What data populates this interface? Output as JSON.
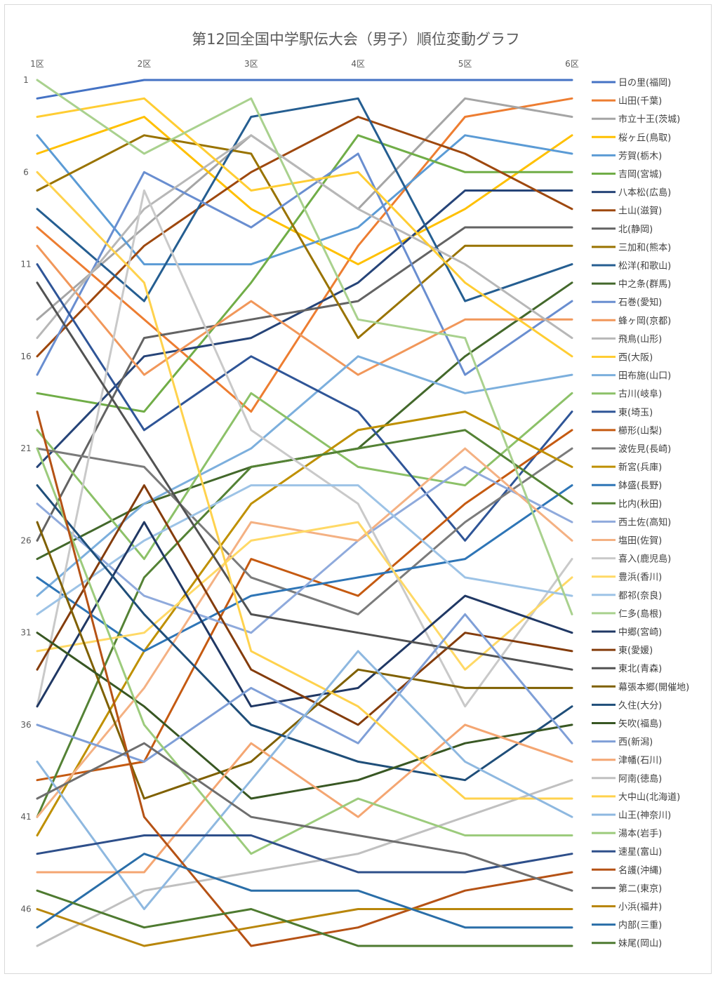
{
  "chart_data": {
    "type": "line",
    "title": "第12回全国中学駅伝大会（男子）順位変動グラフ",
    "xlabel": "",
    "ylabel": "",
    "categories": [
      "1区",
      "2区",
      "3区",
      "4区",
      "5区",
      "6区"
    ],
    "y_ticks": [
      1,
      6,
      11,
      16,
      21,
      26,
      31,
      36,
      41,
      46
    ],
    "ylim": [
      1,
      48
    ],
    "y_inverted": true,
    "grid": false,
    "legend_position": "right",
    "series": [
      {
        "name": "日の里(福岡)",
        "color": "#4472C4",
        "values": [
          2,
          1,
          1,
          1,
          1,
          1
        ]
      },
      {
        "name": "山田(千葉)",
        "color": "#ED7D31",
        "values": [
          9,
          14,
          19,
          10,
          3,
          2
        ]
      },
      {
        "name": "市立十王(茨城)",
        "color": "#A5A5A5",
        "values": [
          14,
          9,
          4,
          8,
          2,
          3
        ]
      },
      {
        "name": "桜ヶ丘(鳥取)",
        "color": "#FFC000",
        "values": [
          5,
          3,
          8,
          11,
          8,
          4
        ]
      },
      {
        "name": "芳賀(栃木)",
        "color": "#5B9BD5",
        "values": [
          4,
          11,
          11,
          9,
          4,
          5
        ]
      },
      {
        "name": "吉岡(宮城)",
        "color": "#70AD47",
        "values": [
          18,
          19,
          12,
          4,
          6,
          6
        ]
      },
      {
        "name": "八本松(広島)",
        "color": "#264478",
        "values": [
          22,
          16,
          15,
          12,
          7,
          7
        ]
      },
      {
        "name": "土山(滋賀)",
        "color": "#9E480E",
        "values": [
          16,
          10,
          6,
          3,
          5,
          8
        ]
      },
      {
        "name": "北(静岡)",
        "color": "#636363",
        "values": [
          26,
          15,
          14,
          13,
          9,
          9
        ]
      },
      {
        "name": "三加和(熊本)",
        "color": "#997300",
        "values": [
          7,
          4,
          5,
          15,
          10,
          10
        ]
      },
      {
        "name": "松洋(和歌山)",
        "color": "#255E91",
        "values": [
          8,
          13,
          3,
          2,
          13,
          11
        ]
      },
      {
        "name": "中之条(群馬)",
        "color": "#43682B",
        "values": [
          27,
          24,
          22,
          21,
          16,
          12
        ]
      },
      {
        "name": "石巻(愛知)",
        "color": "#698ED0",
        "values": [
          17,
          6,
          9,
          5,
          17,
          13
        ]
      },
      {
        "name": "蜂ヶ岡(京都)",
        "color": "#F1975A",
        "values": [
          10,
          17,
          13,
          17,
          14,
          14
        ]
      },
      {
        "name": "飛鳥(山形)",
        "color": "#B7B7B7",
        "values": [
          15,
          8,
          4,
          8,
          11,
          15
        ]
      },
      {
        "name": "西(大阪)",
        "color": "#FFCD33",
        "values": [
          3,
          2,
          7,
          6,
          12,
          16
        ]
      },
      {
        "name": "田布施(山口)",
        "color": "#7CAFDD",
        "values": [
          29,
          24,
          21,
          16,
          18,
          17
        ]
      },
      {
        "name": "古川(岐阜)",
        "color": "#8CC168",
        "values": [
          20,
          27,
          18,
          22,
          23,
          18
        ]
      },
      {
        "name": "東(埼玉)",
        "color": "#2F5597",
        "values": [
          11,
          20,
          16,
          19,
          26,
          19
        ]
      },
      {
        "name": "櫛形(山梨)",
        "color": "#C55A11",
        "values": [
          39,
          38,
          27,
          29,
          24,
          20
        ]
      },
      {
        "name": "波佐見(長崎)",
        "color": "#7B7B7B",
        "values": [
          21,
          22,
          28,
          30,
          25,
          21
        ]
      },
      {
        "name": "新宮(兵庫)",
        "color": "#BF9000",
        "values": [
          42,
          32,
          24,
          20,
          19,
          22
        ]
      },
      {
        "name": "鉢盛(長野)",
        "color": "#2E75B6",
        "values": [
          28,
          32,
          29,
          28,
          27,
          23
        ]
      },
      {
        "name": "比内(秋田)",
        "color": "#548235",
        "values": [
          41,
          28,
          22,
          21,
          20,
          24
        ]
      },
      {
        "name": "西土佐(高知)",
        "color": "#8FAADC",
        "values": [
          24,
          29,
          31,
          26,
          22,
          25
        ]
      },
      {
        "name": "塩田(佐賀)",
        "color": "#F4B183",
        "values": [
          41,
          34,
          25,
          26,
          21,
          26
        ]
      },
      {
        "name": "喜入(鹿児島)",
        "color": "#C9C9C9",
        "values": [
          35,
          7,
          20,
          24,
          35,
          27
        ]
      },
      {
        "name": "豊浜(香川)",
        "color": "#FFD966",
        "values": [
          32,
          31,
          26,
          25,
          33,
          28
        ]
      },
      {
        "name": "都祁(奈良)",
        "color": "#9DC3E6",
        "values": [
          30,
          26,
          23,
          23,
          28,
          29
        ]
      },
      {
        "name": "仁多(島根)",
        "color": "#A9D18E",
        "values": [
          1,
          5,
          2,
          14,
          15,
          30
        ]
      },
      {
        "name": "中郷(宮崎)",
        "color": "#203864",
        "values": [
          35,
          25,
          35,
          34,
          29,
          31
        ]
      },
      {
        "name": "東(愛媛)",
        "color": "#843C0C",
        "values": [
          33,
          23,
          33,
          36,
          31,
          32
        ]
      },
      {
        "name": "東北(青森)",
        "color": "#525252",
        "values": [
          12,
          21,
          30,
          31,
          32,
          33
        ]
      },
      {
        "name": "幕張本郷(開催地)",
        "color": "#7F6000",
        "values": [
          25,
          40,
          38,
          33,
          34,
          34
        ]
      },
      {
        "name": "久住(大分)",
        "color": "#1F4E79",
        "values": [
          23,
          30,
          36,
          38,
          39,
          35
        ]
      },
      {
        "name": "矢吹(福島)",
        "color": "#385723",
        "values": [
          31,
          35,
          40,
          39,
          37,
          36
        ]
      },
      {
        "name": "西(新潟)",
        "color": "#7F9FD7",
        "values": [
          36,
          38,
          34,
          37,
          30,
          37
        ]
      },
      {
        "name": "津幡(石川)",
        "color": "#F4A672",
        "values": [
          44,
          44,
          37,
          41,
          36,
          38
        ]
      },
      {
        "name": "阿南(徳島)",
        "color": "#C0C0C0",
        "values": [
          48,
          45,
          44,
          43,
          41,
          39
        ]
      },
      {
        "name": "大中山(北海道)",
        "color": "#FFD24D",
        "values": [
          6,
          12,
          32,
          35,
          40,
          40
        ]
      },
      {
        "name": "山王(神奈川)",
        "color": "#8EB8E0",
        "values": [
          38,
          46,
          39,
          32,
          38,
          41
        ]
      },
      {
        "name": "湯本(岩手)",
        "color": "#9CCB7C",
        "values": [
          21,
          36,
          43,
          40,
          42,
          42
        ]
      },
      {
        "name": "速星(富山)",
        "color": "#2E4F8A",
        "values": [
          43,
          42,
          42,
          44,
          44,
          43
        ]
      },
      {
        "name": "名護(沖縄)",
        "color": "#B55215",
        "values": [
          19,
          41,
          48,
          47,
          45,
          44
        ]
      },
      {
        "name": "第二(東京)",
        "color": "#6E6E6E",
        "values": [
          40,
          37,
          41,
          42,
          43,
          45
        ]
      },
      {
        "name": "小浜(福井)",
        "color": "#B8860B",
        "values": [
          46,
          48,
          47,
          46,
          46,
          46
        ]
      },
      {
        "name": "内部(三重)",
        "color": "#2A6EA8",
        "values": [
          47,
          43,
          45,
          45,
          47,
          47
        ]
      },
      {
        "name": "妹尾(岡山)",
        "color": "#4E7A30",
        "values": [
          45,
          47,
          46,
          48,
          48,
          48
        ]
      }
    ]
  }
}
